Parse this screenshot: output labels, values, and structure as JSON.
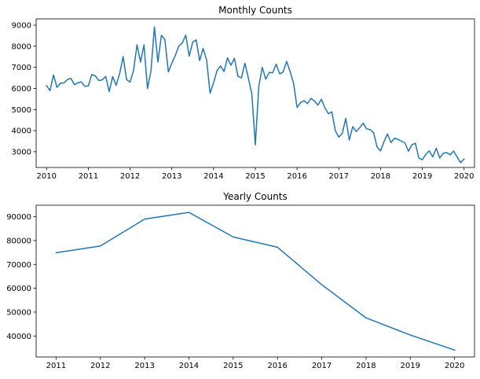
{
  "chart_data": [
    {
      "type": "line",
      "title": "Monthly Counts",
      "xlabel": "",
      "ylabel": "",
      "color": "#1f77b4",
      "grid": false,
      "x_ticks": [
        "2010",
        "2011",
        "2012",
        "2013",
        "2014",
        "2015",
        "2016",
        "2017",
        "2018",
        "2019",
        "2020"
      ],
      "y_ticks": [
        "3000",
        "4000",
        "5000",
        "6000",
        "7000",
        "8000",
        "9000"
      ],
      "xlim": [
        "2009-10",
        "2020-04"
      ],
      "ylim": [
        2250,
        9300
      ],
      "x": [
        "2010-01",
        "2010-02",
        "2010-03",
        "2010-04",
        "2010-05",
        "2010-06",
        "2010-07",
        "2010-08",
        "2010-09",
        "2010-10",
        "2010-11",
        "2010-12",
        "2011-01",
        "2011-02",
        "2011-03",
        "2011-04",
        "2011-05",
        "2011-06",
        "2011-07",
        "2011-08",
        "2011-09",
        "2011-10",
        "2011-11",
        "2011-12",
        "2012-01",
        "2012-02",
        "2012-03",
        "2012-04",
        "2012-05",
        "2012-06",
        "2012-07",
        "2012-08",
        "2012-09",
        "2012-10",
        "2012-11",
        "2012-12",
        "2013-01",
        "2013-02",
        "2013-03",
        "2013-04",
        "2013-05",
        "2013-06",
        "2013-07",
        "2013-08",
        "2013-09",
        "2013-10",
        "2013-11",
        "2013-12",
        "2014-01",
        "2014-02",
        "2014-03",
        "2014-04",
        "2014-05",
        "2014-06",
        "2014-07",
        "2014-08",
        "2014-09",
        "2014-10",
        "2014-11",
        "2014-12",
        "2015-01",
        "2015-02",
        "2015-03",
        "2015-04",
        "2015-05",
        "2015-06",
        "2015-07",
        "2015-08",
        "2015-09",
        "2015-10",
        "2015-11",
        "2015-12",
        "2016-01",
        "2016-02",
        "2016-03",
        "2016-04",
        "2016-05",
        "2016-06",
        "2016-07",
        "2016-08",
        "2016-09",
        "2016-10",
        "2016-11",
        "2016-12",
        "2017-01",
        "2017-02",
        "2017-03",
        "2017-04",
        "2017-05",
        "2017-06",
        "2017-07",
        "2017-08",
        "2017-09",
        "2017-10",
        "2017-11",
        "2017-12",
        "2018-01",
        "2018-02",
        "2018-03",
        "2018-04",
        "2018-05",
        "2018-06",
        "2018-07",
        "2018-08",
        "2018-09",
        "2018-10",
        "2018-11",
        "2018-12",
        "2019-01",
        "2019-02",
        "2019-03",
        "2019-04",
        "2019-05",
        "2019-06",
        "2019-07",
        "2019-08",
        "2019-09",
        "2019-10",
        "2019-11",
        "2019-12",
        "2020-01"
      ],
      "values": [
        6130,
        5900,
        6640,
        6050,
        6250,
        6260,
        6420,
        6480,
        6180,
        6270,
        6310,
        6100,
        6120,
        6660,
        6600,
        6380,
        6400,
        6570,
        5850,
        6560,
        6150,
        6700,
        7510,
        6420,
        6300,
        6860,
        8070,
        7250,
        8070,
        5990,
        6820,
        8920,
        7250,
        8520,
        8320,
        6780,
        7200,
        7560,
        8010,
        8150,
        8530,
        7530,
        8200,
        8300,
        7320,
        7900,
        7350,
        5780,
        6270,
        6850,
        7070,
        6800,
        7450,
        7100,
        7430,
        6580,
        6500,
        7200,
        6490,
        5740,
        3320,
        6100,
        7000,
        6440,
        6760,
        6740,
        7150,
        6690,
        6780,
        7280,
        6800,
        6240,
        5100,
        5330,
        5420,
        5280,
        5530,
        5400,
        5210,
        5490,
        5080,
        4800,
        4890,
        3990,
        3690,
        3870,
        4580,
        3550,
        4190,
        3950,
        4140,
        4350,
        4080,
        4050,
        3900,
        3220,
        3040,
        3480,
        3840,
        3430,
        3640,
        3580,
        3500,
        3420,
        3020,
        3330,
        3400,
        2700,
        2620,
        2870,
        3040,
        2750,
        3160,
        2700,
        2920,
        2960,
        2850,
        3030,
        2750,
        2480,
        2650
      ]
    },
    {
      "type": "line",
      "title": "Yearly Counts",
      "xlabel": "",
      "ylabel": "",
      "color": "#1f77b4",
      "grid": false,
      "x_ticks": [
        "2011",
        "2012",
        "2013",
        "2014",
        "2015",
        "2016",
        "2017",
        "2018",
        "2019",
        "2020"
      ],
      "y_ticks": [
        "40000",
        "50000",
        "60000",
        "70000",
        "80000",
        "90000"
      ],
      "xlim": [
        2010.55,
        2020.45
      ],
      "ylim": [
        31200,
        94800
      ],
      "x": [
        2011,
        2012,
        2013,
        2014,
        2015,
        2016,
        2017,
        2018,
        2019,
        2020
      ],
      "values": [
        74900,
        77700,
        89000,
        91800,
        81500,
        77200,
        61500,
        47600,
        40400,
        34100
      ]
    }
  ]
}
